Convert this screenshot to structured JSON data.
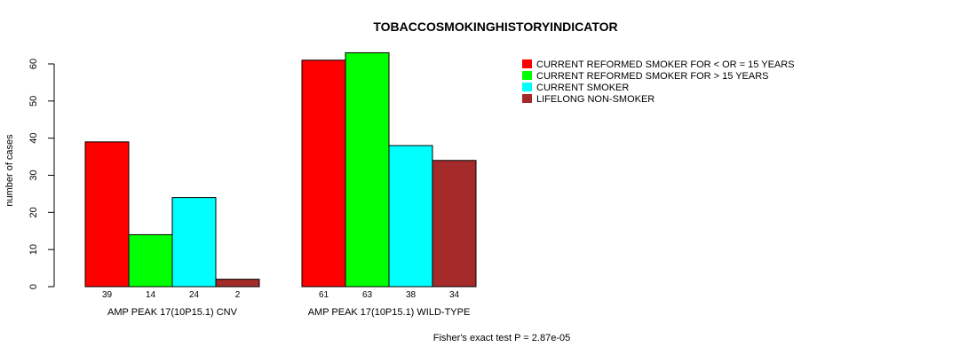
{
  "chart_data": {
    "type": "bar",
    "title": "TOBACCOSMOKINGHISTORYINDICATOR",
    "ylabel": "number of cases",
    "ylim": [
      0,
      60
    ],
    "yticks": [
      0,
      10,
      20,
      30,
      40,
      50,
      60
    ],
    "groups": [
      "AMP PEAK 17(10P15.1) CNV",
      "AMP PEAK 17(10P15.1) WILD-TYPE"
    ],
    "series": [
      {
        "name": "CURRENT REFORMED SMOKER FOR < OR = 15 YEARS",
        "color": "#ff0000",
        "values": [
          39,
          61
        ]
      },
      {
        "name": "CURRENT REFORMED SMOKER FOR > 15 YEARS",
        "color": "#00ff00",
        "values": [
          14,
          63
        ]
      },
      {
        "name": "CURRENT SMOKER",
        "color": "#00ffff",
        "values": [
          24,
          38
        ]
      },
      {
        "name": "LIFELONG NON-SMOKER",
        "color": "#a52a2a",
        "values": [
          2,
          34
        ]
      }
    ],
    "legend_position": "top-right",
    "footnote": "Fisher's exact test P = 2.87e-05"
  }
}
